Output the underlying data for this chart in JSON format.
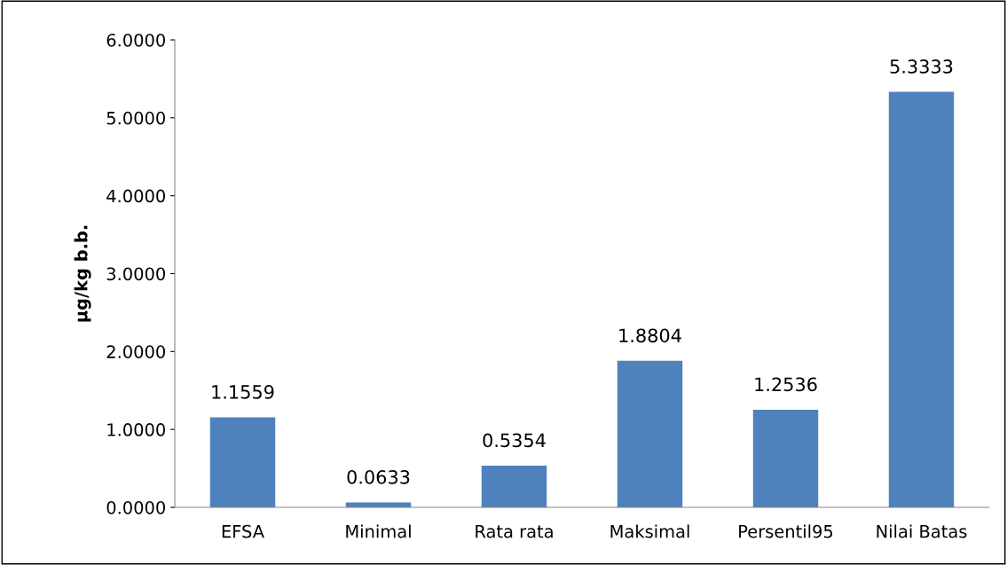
{
  "chart_data": {
    "type": "bar",
    "ylabel": "µg/kg b.b.",
    "categories": [
      "EFSA",
      "Minimal",
      "Rata rata",
      "Maksimal",
      "Persentil95",
      "Nilai Batas"
    ],
    "values": [
      1.1559,
      0.0633,
      0.5354,
      1.8804,
      1.2536,
      5.3333
    ],
    "value_labels": [
      "1.1559",
      "0.0633",
      "0.5354",
      "1.8804",
      "1.2536",
      "5.3333"
    ],
    "color": "#4f81bd",
    "ylim": [
      0,
      6
    ],
    "yticks": [
      {
        "value": 0,
        "label": "0.0000"
      },
      {
        "value": 1,
        "label": "1.0000"
      },
      {
        "value": 2,
        "label": "2.0000"
      },
      {
        "value": 3,
        "label": "3.0000"
      },
      {
        "value": 4,
        "label": "4.0000"
      },
      {
        "value": 5,
        "label": "5.0000"
      },
      {
        "value": 6,
        "label": "6.0000"
      }
    ],
    "grid": false,
    "legend": false
  }
}
